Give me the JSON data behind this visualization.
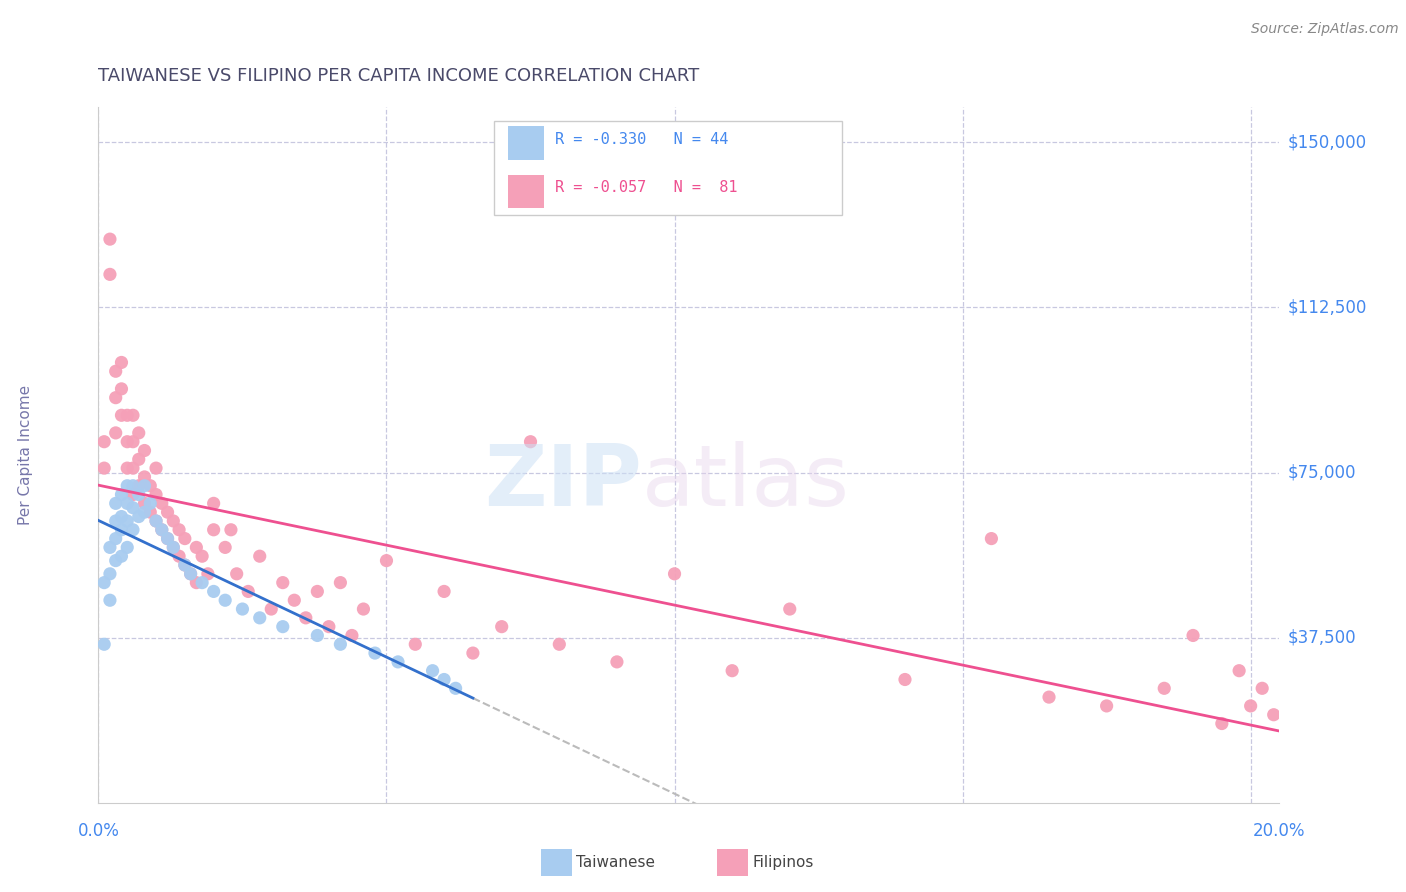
{
  "title": "TAIWANESE VS FILIPINO PER CAPITA INCOME CORRELATION CHART",
  "source": "Source: ZipAtlas.com",
  "ylabel": "Per Capita Income",
  "xlim": [
    0.0,
    0.205
  ],
  "ylim": [
    0,
    158000
  ],
  "watermark_zip": "ZIP",
  "watermark_atlas": "atlas",
  "legend_r_taiwanese": "R = -0.330",
  "legend_n_taiwanese": "N = 44",
  "legend_r_filipino": "R = -0.057",
  "legend_n_filipino": "N =  81",
  "taiwanese_color": "#a8ccf0",
  "filipino_color": "#f5a0b8",
  "taiwanese_line_color": "#3370cc",
  "filipino_line_color": "#ee5090",
  "dashed_line_color": "#bbbbbb",
  "background_color": "#ffffff",
  "grid_color": "#c8c8e0",
  "title_color": "#4a4a6a",
  "axis_label_color": "#4488ee",
  "ytick_vals": [
    37500,
    75000,
    112500,
    150000
  ],
  "ytick_labels": [
    "$37,500",
    "$75,000",
    "$112,500",
    "$150,000"
  ],
  "xtick_vals": [
    0.0,
    0.05,
    0.1,
    0.15,
    0.2
  ],
  "taiwanese_x": [
    0.001,
    0.001,
    0.002,
    0.002,
    0.002,
    0.003,
    0.003,
    0.003,
    0.003,
    0.004,
    0.004,
    0.004,
    0.004,
    0.005,
    0.005,
    0.005,
    0.005,
    0.006,
    0.006,
    0.006,
    0.007,
    0.007,
    0.008,
    0.008,
    0.009,
    0.01,
    0.011,
    0.012,
    0.013,
    0.015,
    0.016,
    0.018,
    0.02,
    0.022,
    0.025,
    0.028,
    0.032,
    0.038,
    0.042,
    0.048,
    0.052,
    0.058,
    0.06,
    0.062
  ],
  "taiwanese_y": [
    36000,
    50000,
    46000,
    52000,
    58000,
    55000,
    60000,
    64000,
    68000,
    56000,
    62000,
    65000,
    70000,
    58000,
    64000,
    68000,
    72000,
    62000,
    67000,
    72000,
    65000,
    70000,
    66000,
    72000,
    68000,
    64000,
    62000,
    60000,
    58000,
    54000,
    52000,
    50000,
    48000,
    46000,
    44000,
    42000,
    40000,
    38000,
    36000,
    34000,
    32000,
    30000,
    28000,
    26000
  ],
  "filipino_x": [
    0.001,
    0.001,
    0.002,
    0.002,
    0.003,
    0.003,
    0.003,
    0.004,
    0.004,
    0.004,
    0.005,
    0.005,
    0.005,
    0.006,
    0.006,
    0.006,
    0.006,
    0.007,
    0.007,
    0.007,
    0.008,
    0.008,
    0.008,
    0.009,
    0.009,
    0.01,
    0.01,
    0.01,
    0.011,
    0.011,
    0.012,
    0.012,
    0.013,
    0.013,
    0.014,
    0.014,
    0.015,
    0.015,
    0.016,
    0.017,
    0.017,
    0.018,
    0.019,
    0.02,
    0.02,
    0.022,
    0.023,
    0.024,
    0.026,
    0.028,
    0.03,
    0.032,
    0.034,
    0.036,
    0.038,
    0.04,
    0.042,
    0.044,
    0.046,
    0.05,
    0.055,
    0.06,
    0.065,
    0.07,
    0.075,
    0.08,
    0.09,
    0.1,
    0.11,
    0.12,
    0.14,
    0.155,
    0.165,
    0.175,
    0.185,
    0.19,
    0.195,
    0.198,
    0.2,
    0.202,
    0.204
  ],
  "filipino_y": [
    76000,
    82000,
    120000,
    128000,
    84000,
    92000,
    98000,
    88000,
    94000,
    100000,
    76000,
    82000,
    88000,
    70000,
    76000,
    82000,
    88000,
    72000,
    78000,
    84000,
    68000,
    74000,
    80000,
    66000,
    72000,
    64000,
    70000,
    76000,
    62000,
    68000,
    60000,
    66000,
    58000,
    64000,
    56000,
    62000,
    54000,
    60000,
    52000,
    58000,
    50000,
    56000,
    52000,
    62000,
    68000,
    58000,
    62000,
    52000,
    48000,
    56000,
    44000,
    50000,
    46000,
    42000,
    48000,
    40000,
    50000,
    38000,
    44000,
    55000,
    36000,
    48000,
    34000,
    40000,
    82000,
    36000,
    32000,
    52000,
    30000,
    44000,
    28000,
    60000,
    24000,
    22000,
    26000,
    38000,
    18000,
    30000,
    22000,
    26000,
    20000
  ]
}
